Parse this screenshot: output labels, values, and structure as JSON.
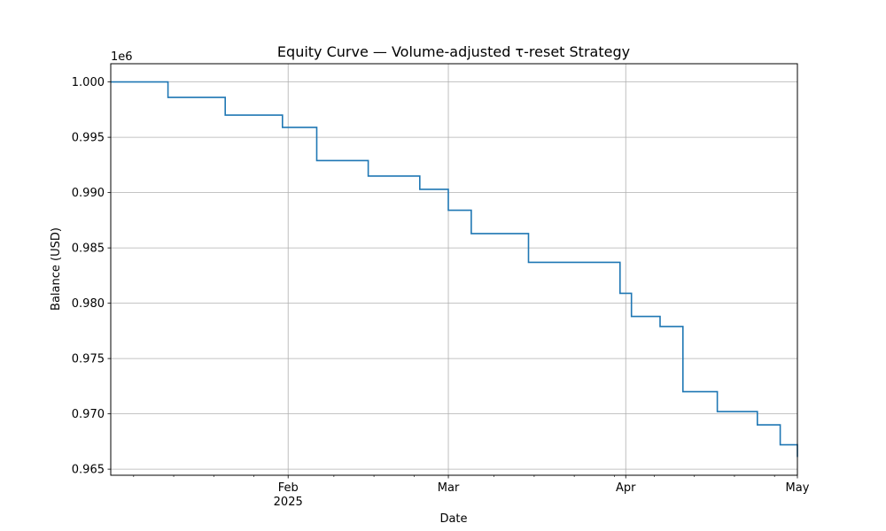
{
  "chart_data": {
    "type": "line",
    "step": "post",
    "title": "Equity Curve — Volume-adjusted τ-reset Strategy",
    "xlabel": "Date",
    "ylabel": "Balance (USD)",
    "y_offset_label": "1e6",
    "grid": true,
    "line_color": "#1f77b4",
    "xlim": [
      "2025-01-01",
      "2025-05-01"
    ],
    "ylim": [
      0.96445,
      1.00165
    ],
    "y_ticks": [
      0.965,
      0.97,
      0.975,
      0.98,
      0.985,
      0.99,
      0.995,
      1.0
    ],
    "y_tick_labels": [
      "0.965",
      "0.970",
      "0.975",
      "0.980",
      "0.985",
      "0.990",
      "0.995",
      "1.000"
    ],
    "x_major_ticks": [
      {
        "date": "2025-02-01",
        "label": "Feb",
        "sublabel": "2025"
      },
      {
        "date": "2025-03-01",
        "label": "Mar",
        "sublabel": ""
      },
      {
        "date": "2025-04-01",
        "label": "Apr",
        "sublabel": ""
      },
      {
        "date": "2025-05-01",
        "label": "May",
        "sublabel": ""
      }
    ],
    "x_minor_ticks": [
      "2025-01-05",
      "2025-01-12",
      "2025-01-19",
      "2025-01-26",
      "2025-02-09",
      "2025-02-16",
      "2025-02-23",
      "2025-03-09",
      "2025-03-16",
      "2025-03-23",
      "2025-03-30",
      "2025-04-06",
      "2025-04-13",
      "2025-04-20",
      "2025-04-27"
    ],
    "series": [
      {
        "dates": [
          "2025-01-01",
          "2025-01-11",
          "2025-01-21",
          "2025-01-31",
          "2025-02-06",
          "2025-02-15",
          "2025-02-24",
          "2025-03-01",
          "2025-03-05",
          "2025-03-15",
          "2025-03-31",
          "2025-04-02",
          "2025-04-07",
          "2025-04-11",
          "2025-04-17",
          "2025-04-24",
          "2025-04-28",
          "2025-05-01"
        ],
        "values": [
          1.0,
          0.9986,
          0.997,
          0.9959,
          0.9929,
          0.9915,
          0.9903,
          0.9884,
          0.9863,
          0.9837,
          0.9809,
          0.9788,
          0.9779,
          0.972,
          0.9702,
          0.969,
          0.9672,
          0.9661
        ]
      }
    ]
  }
}
